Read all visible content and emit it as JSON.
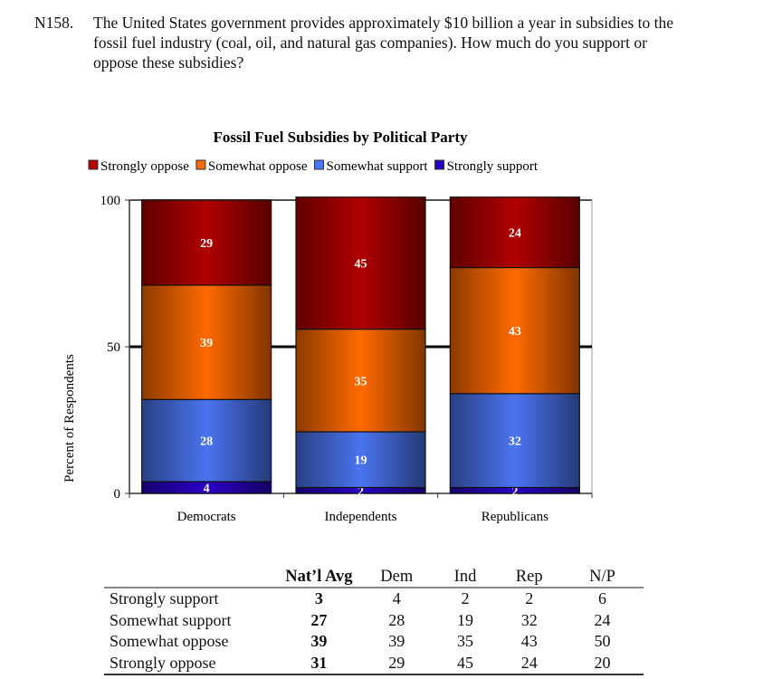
{
  "question": {
    "id": "N158.",
    "line1": "The United States government provides approximately $10 billion a year in subsidies to the",
    "line2": "fossil fuel industry (coal, oil, and natural gas companies). How much do you support or",
    "line3": "oppose these subsidies?"
  },
  "chart_data": {
    "type": "bar",
    "stacked": true,
    "title": "Fossil Fuel Subsidies by Political Party",
    "xlabel": "",
    "ylabel": "Percent of Respondents",
    "ylim": [
      0,
      100
    ],
    "yticks": [
      "0",
      "50",
      "100"
    ],
    "categories": [
      "Democrats",
      "Independents",
      "Republicans"
    ],
    "legend_position": "top",
    "series": [
      {
        "name": "Strongly support",
        "values": [
          4,
          2,
          2
        ],
        "color": "#2A00C8"
      },
      {
        "name": "Somewhat support",
        "values": [
          28,
          19,
          32
        ],
        "color": "#4A74F0"
      },
      {
        "name": "Somewhat oppose",
        "values": [
          39,
          35,
          43
        ],
        "color": "#FF6A00"
      },
      {
        "name": "Strongly oppose",
        "values": [
          29,
          45,
          24
        ],
        "color": "#B00000"
      }
    ],
    "legend_order": [
      "Strongly oppose",
      "Somewhat oppose",
      "Somewhat support",
      "Strongly support"
    ],
    "reference_line": 50
  },
  "table": {
    "headers": [
      "",
      "Nat’l Avg",
      "Dem",
      "Ind",
      "Rep",
      "N/P"
    ],
    "rows": [
      {
        "label": "Strongly support",
        "values": [
          "3",
          "4",
          "2",
          "2",
          "6"
        ]
      },
      {
        "label": "Somewhat support",
        "values": [
          "27",
          "28",
          "19",
          "32",
          "24"
        ]
      },
      {
        "label": "Somewhat oppose",
        "values": [
          "39",
          "39",
          "35",
          "43",
          "50"
        ]
      },
      {
        "label": "Strongly oppose",
        "values": [
          "31",
          "29",
          "45",
          "24",
          "20"
        ]
      }
    ]
  }
}
